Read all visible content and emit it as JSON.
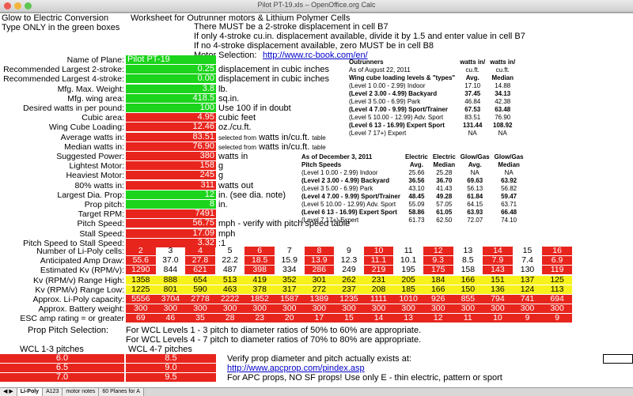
{
  "window": {
    "title": "Pilot PT-19.xls – OpenOffice.org Calc"
  },
  "header": {
    "a1": "Glow to Electric Conversion",
    "a2": "Type ONLY in the green boxes",
    "worksheet": "Worksheet for Outrunner motors & Lithium Polymer Cells",
    "note1": "There MUST be a 2-stroke displacement in cell B7",
    "note2": "If only 4-stroke cu.in. displacement available, divide it by 1.5 and enter value in cell B7",
    "note3": "If no 4-stroke displacement available, zero MUST be in cell B8",
    "motor_sel_label": "Motor Selection:",
    "motor_sel_url": "http://www.rc-book.com/en/"
  },
  "inputs": [
    {
      "label": "Name of Plane:",
      "value": "Pilot PT-19",
      "unit": "",
      "color": "green",
      "align": "left"
    },
    {
      "label": "Recommended Largest 2-stroke:",
      "value": "0.25",
      "unit": "displacement in cubic inches",
      "color": "green"
    },
    {
      "label": "Recommended Largest 4-stroke:",
      "value": "0.00",
      "unit": "displacement in cubic inches",
      "color": "green"
    },
    {
      "label": "Mfg. Max. Weight:",
      "value": "3.8",
      "unit": "lb.",
      "color": "green"
    },
    {
      "label": "Mfg. wing area:",
      "value": "418.5",
      "unit": "sq.in.",
      "color": "green"
    },
    {
      "label": "Desired watts in per pound:",
      "value": "100",
      "unit": "Use 100 if in doubt",
      "color": "green"
    },
    {
      "label": "Cubic area:",
      "value": "4.95",
      "unit": "cubic feet",
      "color": "red"
    },
    {
      "label": "Wing Cube Loading:",
      "value": "12.46",
      "unit": "oz./cu.ft.",
      "color": "red"
    },
    {
      "label": "Average watts in:",
      "value": "83.51",
      "unit_small": "selected from",
      "unit": "watts in/cu.ft.",
      "unit_small2": "table",
      "color": "red"
    },
    {
      "label": "Median watts in:",
      "value": "76.90",
      "unit_small": "selected from",
      "unit": "watts in/cu.ft.",
      "unit_small2": "table",
      "color": "red"
    },
    {
      "label": "Suggested Power:",
      "value": "380",
      "unit": "watts in",
      "color": "red"
    },
    {
      "label": "Lightest Motor:",
      "value": "158",
      "unit": "g",
      "color": "red"
    },
    {
      "label": "Heaviest Motor:",
      "value": "245",
      "unit": "g",
      "color": "red"
    },
    {
      "label": "80% watts in:",
      "value": "311",
      "unit": "watts out",
      "color": "red"
    },
    {
      "label": "Largest Dia. Prop:",
      "value": "12",
      "unit": "in. (see dia. note)",
      "color": "green"
    },
    {
      "label": "Prop pitch:",
      "value": "8",
      "unit": "in.",
      "color": "green"
    },
    {
      "label": "Target RPM:",
      "value": "7491",
      "unit": "",
      "color": "red"
    },
    {
      "label": "Pitch Speed:",
      "value": "56.75",
      "unit": "mph - verify with pitch speed table",
      "color": "red"
    },
    {
      "label": "Stall Speed:",
      "value": "17.09",
      "unit": "mph",
      "color": "red"
    },
    {
      "label": "Pitch Speed to Stall Speed:",
      "value": "3.32",
      "unit": ":1",
      "color": "red"
    }
  ],
  "wcl_table": {
    "h1": [
      "Outrunners",
      "watts in/",
      "watts in/"
    ],
    "h2": [
      "As of August 22, 2011",
      "cu.ft.",
      "cu.ft."
    ],
    "h3": [
      "Wing cube loading levels & \"types\"",
      "Avg.",
      "Median"
    ],
    "rows": [
      [
        "(Level 1  0.00 - 2.99) Indoor",
        "17.10",
        "14.88",
        false
      ],
      [
        "(Level 2  3.00 - 4.99) Backyard",
        "37.45",
        "34.13",
        true
      ],
      [
        "(Level 3  5.00 - 6.99) Park",
        "46.84",
        "42.38",
        false
      ],
      [
        "(Level 4  7.00 - 9.99) Sport/Trainer",
        "67.53",
        "63.48",
        true
      ],
      [
        "(Level 5  10.00 - 12.99) Adv. Sport",
        "83.51",
        "76.90",
        false
      ],
      [
        "(Level 6 13 - 16.99) Expert Sport",
        "131.44",
        "108.92",
        true
      ],
      [
        "(Level 7 17+) Expert",
        "NA",
        "NA",
        false
      ]
    ]
  },
  "pitch_table": {
    "h1": [
      "As of December 3, 2011",
      "Electric",
      "Electric",
      "Glow/Gas",
      "Glow/Gas"
    ],
    "h2": [
      "Pitch Speeds",
      "Avg.",
      "Median",
      "Avg.",
      "Median"
    ],
    "rows": [
      [
        "(Level 1  0.00 - 2.99) Indoor",
        "25.66",
        "25.28",
        "NA",
        "NA",
        false
      ],
      [
        "(Level 2  3.00 - 4.99) Backyard",
        "36.56",
        "36.70",
        "69.63",
        "63.92",
        true
      ],
      [
        "(Level 3  5.00 - 6.99) Park",
        "43.10",
        "41.43",
        "56.13",
        "56.82",
        false
      ],
      [
        "(Level 4  7.00 - 9.99) Sport/Trainer",
        "48.45",
        "49.28",
        "61.84",
        "59.47",
        true
      ],
      [
        "(Level 5  10.00 - 12.99) Adv. Sport",
        "55.09",
        "57.05",
        "64.15",
        "63.71",
        false
      ],
      [
        "(Level 6 13 - 16.99) Expert Sport",
        "58.86",
        "61.05",
        "63.93",
        "66.48",
        true
      ],
      [
        "(Level 7 17+) Expert",
        "61.73",
        "62.50",
        "72.07",
        "74.10",
        false
      ]
    ]
  },
  "cells_table": {
    "rows": [
      {
        "label": "Number of Li-Poly cells:",
        "style": "alt",
        "values": [
          "2",
          "3",
          "4",
          "5",
          "6",
          "7",
          "8",
          "9",
          "10",
          "11",
          "12",
          "13",
          "14",
          "15",
          "16"
        ]
      },
      {
        "label": "Anticipated Amp Draw:",
        "style": "alt",
        "values": [
          "55.6",
          "37.0",
          "27.8",
          "22.2",
          "18.5",
          "15.9",
          "13.9",
          "12.3",
          "11.1",
          "10.1",
          "9.3",
          "8.5",
          "7.9",
          "7.4",
          "6.9"
        ]
      },
      {
        "label": "Estimated Kv (RPM/v):",
        "style": "alt",
        "values": [
          "1290",
          "844",
          "621",
          "487",
          "398",
          "334",
          "286",
          "249",
          "219",
          "195",
          "175",
          "158",
          "143",
          "130",
          "119"
        ]
      },
      {
        "label": "Kv (RPM/v) Range High:",
        "style": "yellow",
        "values": [
          "1358",
          "888",
          "654",
          "513",
          "419",
          "352",
          "301",
          "262",
          "231",
          "205",
          "184",
          "166",
          "151",
          "137",
          "125"
        ]
      },
      {
        "label": "Kv (RPM/v) Range Low:",
        "style": "yellow",
        "values": [
          "1225",
          "801",
          "590",
          "463",
          "378",
          "317",
          "272",
          "237",
          "208",
          "185",
          "166",
          "150",
          "136",
          "124",
          "113"
        ]
      },
      {
        "label": "Approx. Li-Poly capacity:",
        "style": "red",
        "values": [
          "5556",
          "3704",
          "2778",
          "2222",
          "1852",
          "1587",
          "1389",
          "1235",
          "1111",
          "1010",
          "926",
          "855",
          "794",
          "741",
          "694"
        ]
      },
      {
        "label": "Approx. Battery weight:",
        "style": "red",
        "values": [
          "300",
          "300",
          "300",
          "300",
          "300",
          "300",
          "300",
          "300",
          "300",
          "300",
          "300",
          "300",
          "300",
          "300",
          "300"
        ]
      },
      {
        "label": "ESC amp rating = or greater",
        "style": "red",
        "values": [
          "69",
          "46",
          "35",
          "28",
          "23",
          "20",
          "17",
          "15",
          "14",
          "13",
          "12",
          "11",
          "10",
          "9",
          "9"
        ]
      }
    ]
  },
  "prop_section": {
    "label": "Prop Pitch Selection:",
    "line1": "For WCL Levels 1 - 3 pitch to diameter ratios of 50% to 60% are appropriate.",
    "line2": "For WCL Levels 4 - 7 pitch to diameter ratios of 70% to 80% are appropriate.",
    "wcl13_label": "WCL 1-3 pitches",
    "wcl47_label": "WCL 4-7 pitches",
    "wcl13": [
      "6.0",
      "6.5",
      "7.0"
    ],
    "wcl47": [
      "8.5",
      "9.0",
      "9.5"
    ],
    "verify": "Verify prop diameter and pitch actually exists at:",
    "apc_url": "http://www.apcprop.com/pindex.asp",
    "apc_note": "For APC props, NO SF props!  Use only E - thin electric, pattern or sport"
  },
  "sheet_tabs": [
    "Li-Poly",
    "A123",
    "motor notes",
    "60 Planes for A"
  ]
}
